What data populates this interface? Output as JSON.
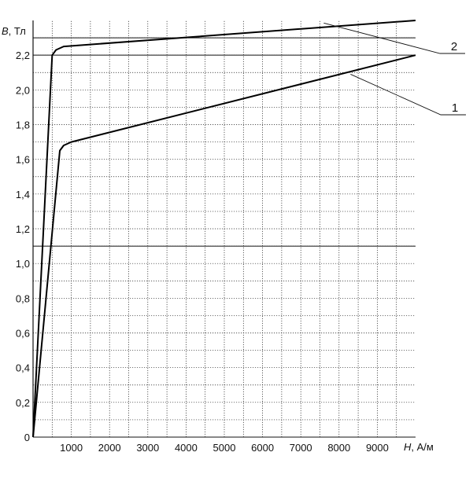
{
  "chart_data": {
    "type": "line",
    "title": "",
    "xlabel": {
      "symbol": "H",
      "unit": ", А/м"
    },
    "ylabel": {
      "symbol": "B",
      "unit": ", Тл"
    },
    "xlim": [
      0,
      10000
    ],
    "ylim": [
      0,
      2.4
    ],
    "x_ticks": [
      {
        "value": 1000,
        "label": "1000"
      },
      {
        "value": 2000,
        "label": "2000"
      },
      {
        "value": 3000,
        "label": "3000"
      },
      {
        "value": 4000,
        "label": "4000"
      },
      {
        "value": 5000,
        "label": "5000"
      },
      {
        "value": 6000,
        "label": "6000"
      },
      {
        "value": 7000,
        "label": "7000"
      },
      {
        "value": 8000,
        "label": "8000"
      },
      {
        "value": 9000,
        "label": "9000"
      }
    ],
    "y_ticks": [
      {
        "value": 0,
        "label": "0"
      },
      {
        "value": 0.2,
        "label": "0,2"
      },
      {
        "value": 0.4,
        "label": "0,4"
      },
      {
        "value": 0.6,
        "label": "0,6"
      },
      {
        "value": 0.8,
        "label": "0,8"
      },
      {
        "value": 1.0,
        "label": "1,0"
      },
      {
        "value": 1.2,
        "label": "1,2"
      },
      {
        "value": 1.4,
        "label": "1,4"
      },
      {
        "value": 1.6,
        "label": "1,6"
      },
      {
        "value": 1.8,
        "label": "1,8"
      },
      {
        "value": 2.0,
        "label": "2,0"
      },
      {
        "value": 2.2,
        "label": "2,2"
      }
    ],
    "grid": {
      "minor_x_step": 500,
      "minor_y_step": 0.1,
      "major_y": [
        1.1,
        2.2,
        2.3
      ]
    },
    "series": [
      {
        "name": "1",
        "color": "#000000",
        "points": [
          [
            0,
            0
          ],
          [
            700,
            1.65
          ],
          [
            800,
            1.68
          ],
          [
            1000,
            1.7
          ],
          [
            10000,
            2.2
          ]
        ],
        "label_anchor": [
          8300,
          2.09
        ]
      },
      {
        "name": "2",
        "color": "#000000",
        "points": [
          [
            0,
            0
          ],
          [
            500,
            2.2
          ],
          [
            600,
            2.23
          ],
          [
            800,
            2.25
          ],
          [
            10000,
            2.4
          ]
        ],
        "label_anchor": [
          7600,
          2.385
        ]
      }
    ]
  }
}
